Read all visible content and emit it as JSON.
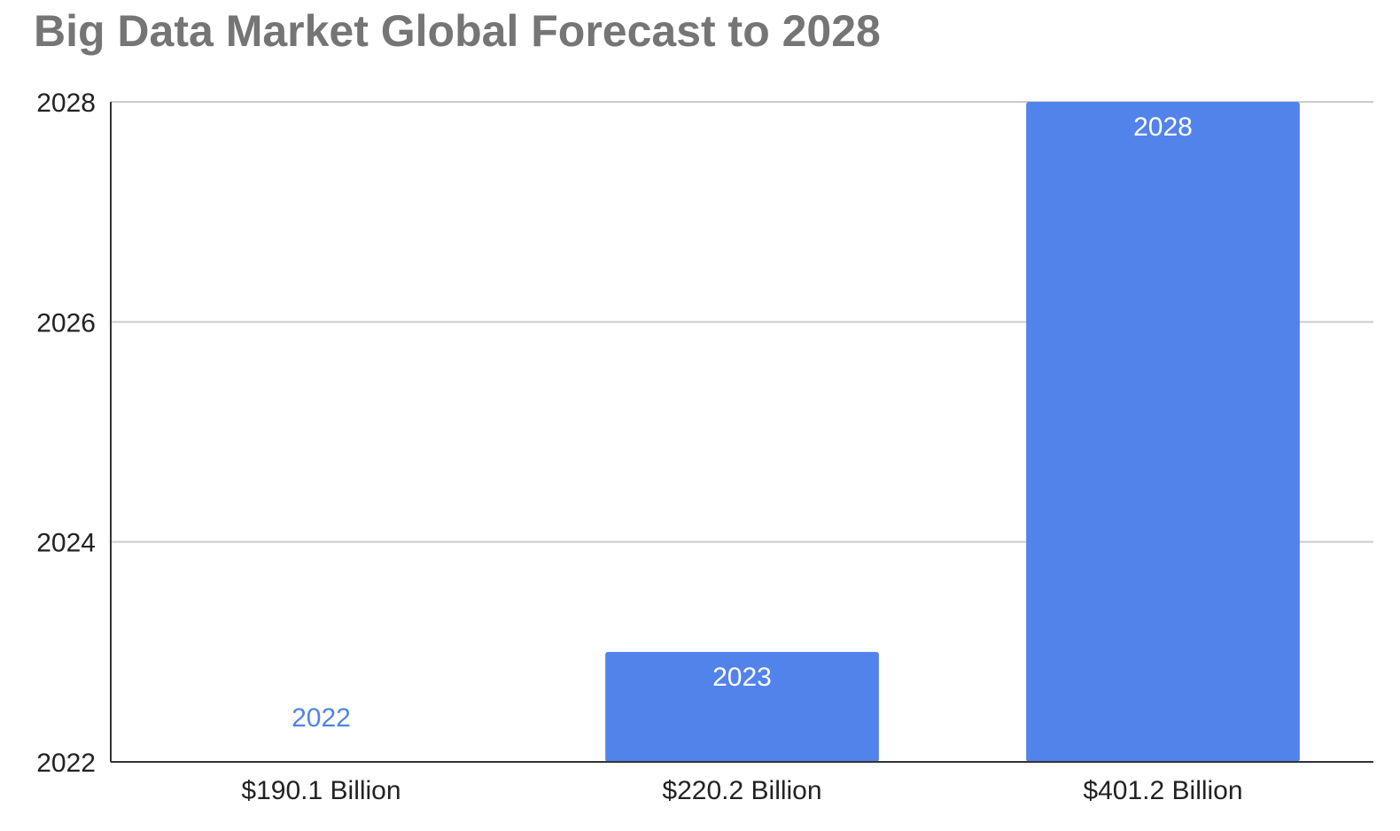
{
  "chart_data": {
    "type": "bar",
    "title": "Big Data Market Global Forecast to 2028",
    "xlabel": "",
    "ylabel": "",
    "categories": [
      "$190.1 Billion",
      "$220.2 Billion",
      "$401.2 Billion"
    ],
    "values": [
      2022,
      2023,
      2028
    ],
    "data_labels": [
      "2022",
      "2023",
      "2028"
    ],
    "ylim": [
      2022,
      2028
    ],
    "yticks": [
      2022,
      2024,
      2026,
      2028
    ],
    "ytick_labels": [
      "2022",
      "2024",
      "2026",
      "2028"
    ],
    "grid": true,
    "legend": "none",
    "colors": {
      "bar": "#5283EB",
      "label_inside": "#FFFFFF",
      "label_outside": "#5283EB",
      "grid": "#CCCCCC",
      "axis": "#333333",
      "title": "#757575"
    }
  }
}
